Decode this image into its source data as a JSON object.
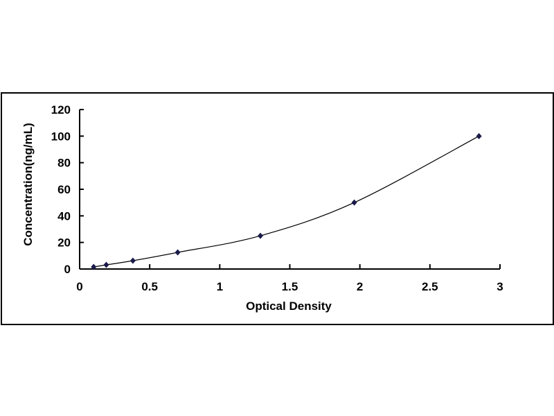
{
  "chart_data": {
    "type": "scatter",
    "title": "",
    "xlabel": "Optical Density",
    "ylabel": "Concentration(ng/mL)",
    "xlim": [
      0,
      3
    ],
    "ylim": [
      0,
      120
    ],
    "xticks": [
      "0",
      "0.5",
      "1",
      "1.5",
      "2",
      "2.5",
      "3"
    ],
    "yticks": [
      "0",
      "20",
      "40",
      "60",
      "80",
      "100",
      "120"
    ],
    "grid": false,
    "legend": "none",
    "trendline": "smooth curve through points",
    "marker": "diamond",
    "color": "#1a1a4a",
    "points": [
      {
        "x": 0.1,
        "y": 1.56
      },
      {
        "x": 0.19,
        "y": 3.12
      },
      {
        "x": 0.38,
        "y": 6.25
      },
      {
        "x": 0.7,
        "y": 12.5
      },
      {
        "x": 1.29,
        "y": 25
      },
      {
        "x": 1.96,
        "y": 50
      },
      {
        "x": 2.85,
        "y": 100
      }
    ]
  }
}
